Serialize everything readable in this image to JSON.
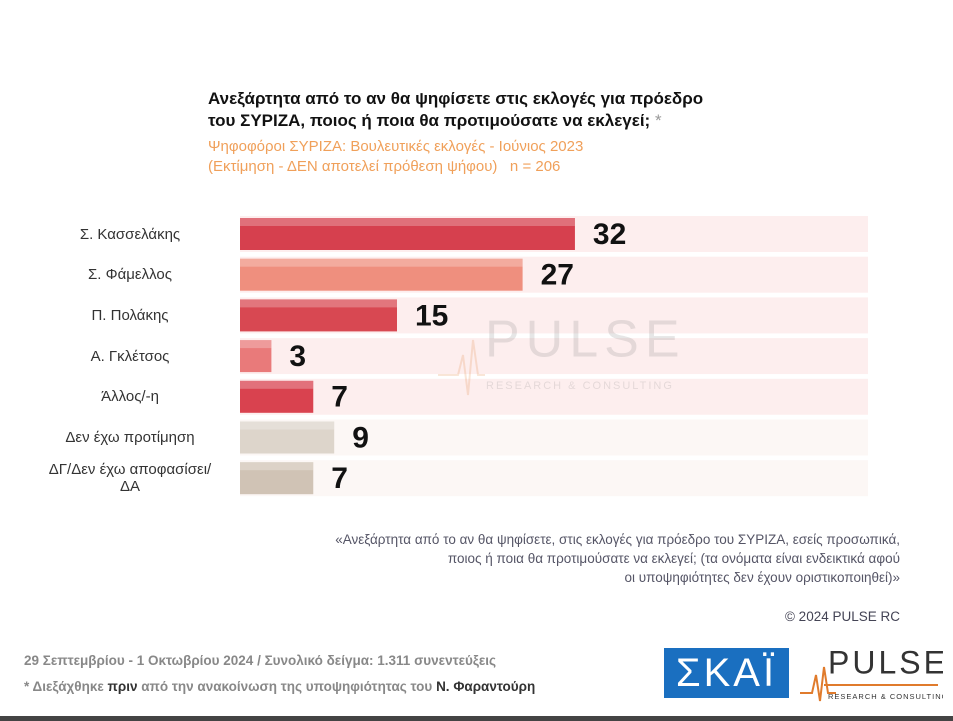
{
  "chart_data": {
    "type": "bar",
    "orientation": "horizontal",
    "title": [
      "Ανεξάρτητα από το αν θα ψηφίσετε στις εκλογές για πρόεδρο",
      "του ΣΥΡΙΖΑ, ποιος ή ποια θα προτιμούσατε να εκλεγεί;"
    ],
    "title_mark": "*",
    "subtitle": [
      "Ψηφοφόροι ΣΥΡΙΖΑ: Βουλευτικές εκλογές - Ιούνιος 2023",
      "(Εκτίμηση - ΔΕΝ αποτελεί πρόθεση ψήφου)   n = 206"
    ],
    "categories": [
      "Σ. Κασσελάκης",
      "Σ. Φάμελλος",
      "Π. Πολάκης",
      "Α. Γκλέτσος",
      "Άλλος/-η",
      "Δεν έχω προτίμηση",
      "ΔΓ/Δεν έχω αποφασίσει/ΔΑ"
    ],
    "values": [
      32,
      27,
      15,
      3,
      7,
      9,
      7
    ],
    "colors": [
      "#d6404e",
      "#ef8f7e",
      "#d84852",
      "#e97a7a",
      "#d9424f",
      "#ddd5cb",
      "#d0c3b5"
    ],
    "xlim": [
      0,
      60
    ]
  },
  "watermark": [
    "PULSE",
    "RESEARCH & CONSULTING"
  ],
  "question": [
    "«Ανεξάρτητα από το αν θα ψηφίσετε, στις εκλογές για πρόεδρο του ΣΥΡΙΖΑ, εσείς προσωπικά,",
    "ποιος ή ποια θα προτιμούσατε να εκλεγεί; (τα ονόματα είναι ενδεικτικά αφού",
    "οι υποψηφιότητες δεν έχουν οριστικοποιηθεί)»"
  ],
  "copyright": "© 2024 PULSE RC",
  "footer": [
    "29 Σεπτεμβρίου - 1 Οκτωβρίου 2024  /  Συνολικό δείγμα:  1.311 συνεντεύξεις",
    [
      "* Διεξάχθηκε",
      "πριν",
      "από την ανακοίνωση της υποψηφιότητας του",
      "Ν. Φαραντούρη"
    ]
  ],
  "logos": [
    "ΣΚΑΪ",
    "PULSE",
    "RESEARCH & CONSULTING"
  ]
}
